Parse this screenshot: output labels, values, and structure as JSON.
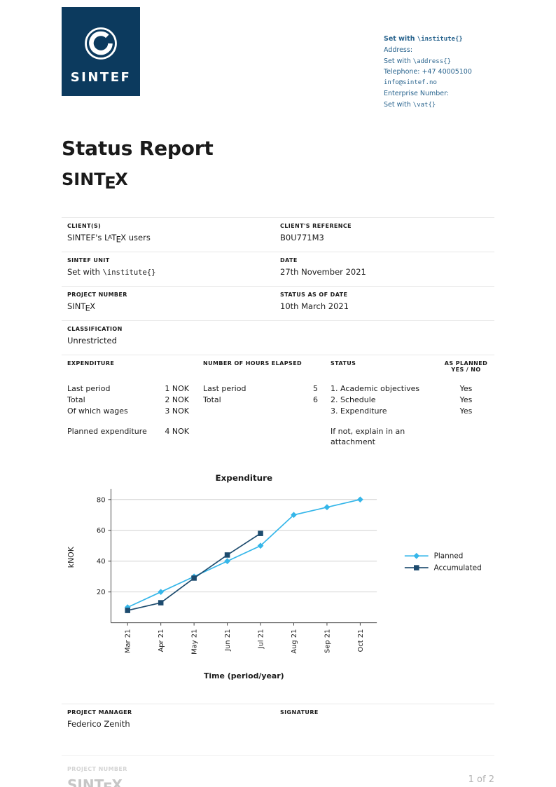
{
  "colors": {
    "sintef_navy": "#0c3a5e",
    "contact_blue": "#29648e",
    "planned_blue": "#35b6e9",
    "accumulated_navy": "#1d4b6e",
    "rule_gray": "#e8e8e8",
    "footer_gray": "#c6c6c6"
  },
  "header": {
    "logo_text": "SINTEF",
    "contact": {
      "institute_prefix": "Set with ",
      "institute_code": "\\institute{}",
      "address_label": "Address:",
      "address_prefix": "Set with ",
      "address_code": "\\address{}",
      "telephone": "Telephone: +47 40005100",
      "email": "info@sintef.no",
      "enterprise_label": "Enterprise Number:",
      "vat_prefix": "Set with ",
      "vat_code": "\\vat{}"
    }
  },
  "title": "Status Report",
  "latex_logo": {
    "l": "L",
    "a": "A",
    "t": "T",
    "e": "E",
    "x": "X"
  },
  "sintex_logo": {
    "sint": "SINT",
    "e": "E",
    "x": "X"
  },
  "fields": {
    "client_label": "CLIENT(S)",
    "client_value_pre": "SINTEF's ",
    "client_value_post": " users",
    "client_ref_label": "CLIENT'S REFERENCE",
    "client_ref_value": "B0U771M3",
    "unit_label": "SINTEF UNIT",
    "unit_value_prefix": "Set with ",
    "unit_value_code": "\\institute{}",
    "date_label": "DATE",
    "date_value": "27th November 2021",
    "project_number_label": "PROJECT NUMBER",
    "status_date_label": "STATUS AS OF DATE",
    "status_date_value": "10th March 2021",
    "classification_label": "CLASSIFICATION",
    "classification_value": "Unrestricted"
  },
  "expenditure_table": {
    "headers": {
      "expenditure": "EXPENDITURE",
      "hours": "NUMBER OF HOURS ELAPSED",
      "status": "STATUS",
      "as_planned_line1": "AS PLANNED",
      "as_planned_line2": "YES / NO"
    },
    "rows": [
      {
        "exp_label": "Last period",
        "exp_value": "1 NOK",
        "hours_label": "Last period",
        "hours_value": "5",
        "status": "1. Academic objectives",
        "as_planned": "Yes"
      },
      {
        "exp_label": "Total",
        "exp_value": "2 NOK",
        "hours_label": "Total",
        "hours_value": "6",
        "status": "2. Schedule",
        "as_planned": "Yes"
      },
      {
        "exp_label": "Of which wages",
        "exp_value": "3 NOK",
        "hours_label": "",
        "hours_value": "",
        "status": "3. Expenditure",
        "as_planned": "Yes"
      }
    ],
    "planned_row": {
      "exp_label": "Planned expenditure",
      "exp_value": "4 NOK",
      "status_note": "If not, explain in an attachment"
    }
  },
  "chart_data": {
    "type": "line",
    "title": "Expenditure",
    "xlabel": "Time (period/year)",
    "ylabel": "kNOK",
    "categories": [
      "Mar 21",
      "Apr 21",
      "May 21",
      "Jun 21",
      "Jul 21",
      "Aug 21",
      "Sep 21",
      "Oct 21"
    ],
    "series": [
      {
        "name": "Planned",
        "marker": "diamond",
        "color": "#35b6e9",
        "values": [
          10,
          20,
          30,
          40,
          50,
          70,
          75,
          80
        ]
      },
      {
        "name": "Accumulated",
        "marker": "square",
        "color": "#1d4b6e",
        "values": [
          8,
          13,
          29,
          44,
          58
        ]
      }
    ],
    "yticks": [
      20,
      40,
      60,
      80
    ],
    "ylim": [
      0,
      85
    ],
    "grid": true,
    "legend_position": "right"
  },
  "project_manager": {
    "label": "PROJECT MANAGER",
    "name": "Federico Zenith",
    "signature_label": "SIGNATURE"
  },
  "footer": {
    "project_number_label": "PROJECT NUMBER",
    "page_indicator": "1 of 2"
  }
}
